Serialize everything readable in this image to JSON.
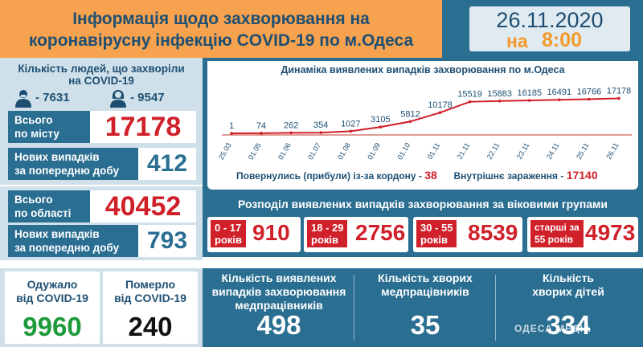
{
  "header": {
    "title_line1": "Інформація щодо захворювання на",
    "title_line2": "коронавірусну інфекцію COVID-19 по м.Одеса",
    "date": "26.11.2020",
    "time_prefix": "на",
    "time": "8:00"
  },
  "city": {
    "sick_title_line1": "Кількість людей, що захворіли",
    "sick_title_line2": "на COVID-19",
    "men": "- 7631",
    "women": "- 9547",
    "total_label_line1": "Всього",
    "total_label_line2": "по місту",
    "total_value": "17178",
    "new_label_line1": "Нових випадків",
    "new_label_line2": "за попередню добу",
    "new_value": "412"
  },
  "region": {
    "total_label_line1": "Всього",
    "total_label_line2": "по області",
    "total_value": "40452",
    "new_label_line1": "Нових випадків",
    "new_label_line2": "за попередню добу",
    "new_value": "793"
  },
  "recovered": {
    "label_line1": "Одужало",
    "label_line2": "від COVID-19",
    "value": "9960"
  },
  "died": {
    "label_line1": "Померло",
    "label_line2": "від COVID-19",
    "value": "240"
  },
  "medics": {
    "label_line1": "Кількість виявлених",
    "label_line2": "випадків захворювання",
    "label_line3": "медпрацівників",
    "value": "498"
  },
  "sick_medics": {
    "label_line1": "Кількість хворих",
    "label_line2": "медпрацівників",
    "value": "35"
  },
  "sick_children": {
    "label_line1": "Кількість",
    "label_line2": "хворих дітей",
    "value": "334"
  },
  "imports": {
    "returned_label": "Повернулись (прибули) із-за кордону -",
    "returned_value": "38",
    "internal_label": "Внутрішнє зараження -",
    "internal_value": "17140"
  },
  "age": {
    "title": "Розподіл виявлених випадків захворювання за віковими групами",
    "groups": [
      {
        "label_line1": "0 - 17",
        "label_line2": "років",
        "value": "910"
      },
      {
        "label_line1": "18 - 29",
        "label_line2": "років",
        "value": "2756"
      },
      {
        "label_line1": "30 - 55",
        "label_line2": "років",
        "value": "8539"
      },
      {
        "label_line1": "старші за",
        "label_line2": "55 років",
        "value": "4973"
      }
    ]
  },
  "watermark": "ОДЕСА МЕДІА",
  "colors": {
    "primary": "#2a6e92",
    "accent": "#f6a24e",
    "red": "#d0202a",
    "green": "#1f9a3a"
  },
  "chart_data": {
    "type": "line",
    "title": "Динаміка виявлених випадків захворювання по м.Одеса",
    "categories": [
      "25.03",
      "01.05",
      "01.06",
      "01.07",
      "01.08",
      "01.09",
      "01.10",
      "01.11",
      "21.11",
      "22.11",
      "23.11",
      "24.11",
      "25.11",
      "26.11"
    ],
    "series": [
      {
        "values": [
          1,
          74,
          262,
          354,
          1027,
          3105,
          5812,
          10178,
          15519,
          15883,
          16185,
          16491,
          16766,
          17178
        ]
      }
    ],
    "value_labels": [
      "1",
      "74",
      "262",
      "354",
      "1027",
      "3105",
      "5812",
      "10178",
      "15519",
      "15883",
      "16185",
      "16491",
      "16766",
      "17178"
    ],
    "ylim": [
      0,
      30000
    ]
  }
}
